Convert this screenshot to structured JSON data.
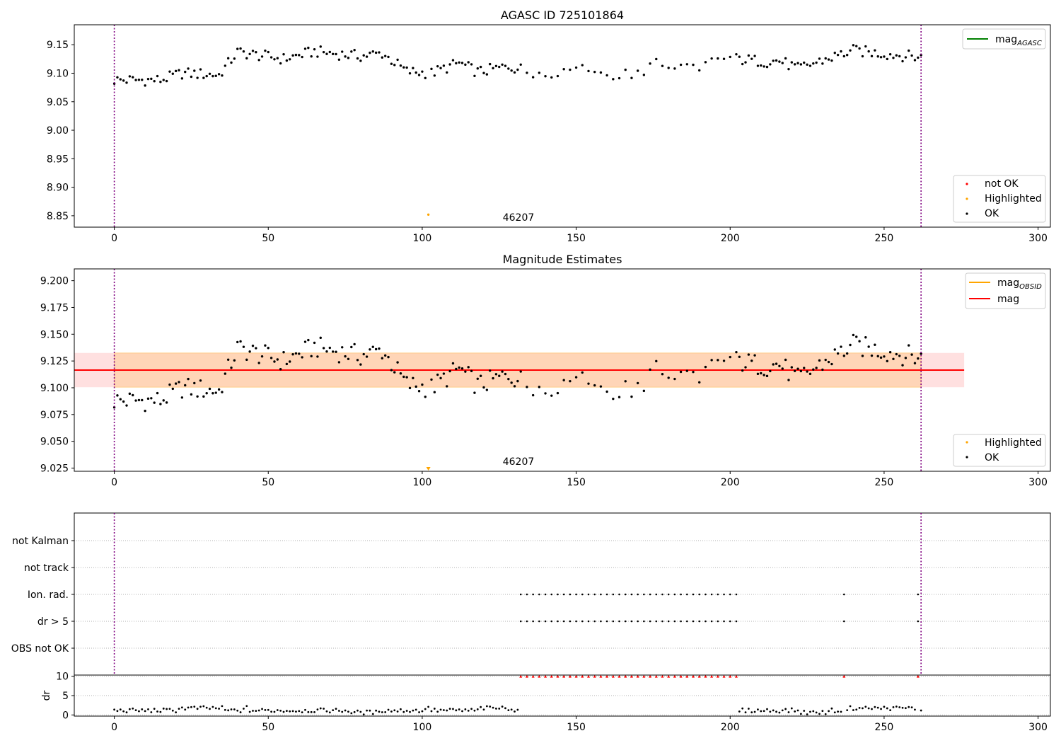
{
  "chart_data": [
    {
      "id": "panel1",
      "type": "scatter",
      "title": "AGASC ID 725101864",
      "xlim": [
        -13,
        304
      ],
      "ylim": [
        8.83,
        9.185
      ],
      "xticks": [
        0,
        50,
        100,
        150,
        200,
        250,
        300
      ],
      "yticks": [
        8.85,
        8.9,
        8.95,
        9.0,
        9.05,
        9.1,
        9.15
      ],
      "ytick_labels": [
        "8.85",
        "8.90",
        "8.95",
        "9.00",
        "9.05",
        "9.10",
        "9.15"
      ],
      "obs_boundaries": [
        0,
        262
      ],
      "annotation": {
        "text": "46207",
        "x": 131,
        "y": 8.838
      },
      "legend_lines": [
        {
          "label": "mag",
          "sub": "AGASC",
          "color": "#008000"
        }
      ],
      "legend_markers": [
        {
          "label": "not OK",
          "color": "#ff0000"
        },
        {
          "label": "Highlighted",
          "color": "#ffa500"
        },
        {
          "label": "OK",
          "color": "#000000"
        }
      ],
      "highlighted": [
        {
          "x": 102,
          "y": 8.852
        }
      ]
    },
    {
      "id": "panel2",
      "type": "scatter",
      "title": "Magnitude Estimates",
      "xlim": [
        -13,
        304
      ],
      "ylim": [
        9.022,
        9.211
      ],
      "xticks": [
        0,
        50,
        100,
        150,
        200,
        250,
        300
      ],
      "yticks": [
        9.025,
        9.05,
        9.075,
        9.1,
        9.125,
        9.15,
        9.175,
        9.2
      ],
      "ytick_labels": [
        "9.025",
        "9.050",
        "9.075",
        "9.100",
        "9.125",
        "9.150",
        "9.175",
        "9.200"
      ],
      "obs_boundaries": [
        0,
        262
      ],
      "annotation": {
        "text": "46207",
        "x": 131,
        "y": 9.027
      },
      "mag_mean": 9.1165,
      "mag_band": [
        9.1005,
        9.1325
      ],
      "band_xrange": [
        -13,
        276
      ],
      "obsid_band_xrange": [
        0,
        262
      ],
      "legend_lines": [
        {
          "label": "mag",
          "sub": "OBSID",
          "color": "#ffa500"
        },
        {
          "label": "mag",
          "sub": "",
          "color": "#ff0000"
        }
      ],
      "legend_markers": [
        {
          "label": "Highlighted",
          "color": "#ffa500"
        },
        {
          "label": "OK",
          "color": "#000000"
        }
      ],
      "highlighted": [
        {
          "x": 102,
          "y": 9.024
        }
      ]
    },
    {
      "id": "panel3",
      "type": "scatter",
      "title": "",
      "xlim": [
        -13,
        304
      ],
      "categories": [
        "not Kalman",
        "not track",
        "Ion. rad.",
        "dr > 5",
        "OBS not OK"
      ],
      "obs_boundaries": [
        0,
        262
      ],
      "flag_intervals": {
        "Ion. rad.": {
          "start": 132,
          "end": 202,
          "step": 2,
          "extra": [
            237,
            261
          ]
        },
        "dr > 5": {
          "start": 132,
          "end": 202,
          "step": 2,
          "extra": [
            237,
            261
          ]
        }
      }
    },
    {
      "id": "panel4",
      "type": "scatter",
      "title": "",
      "ylabel": "dr",
      "xlim": [
        -13,
        304
      ],
      "ylim": [
        -0.3,
        10.3
      ],
      "xticks": [
        0,
        50,
        100,
        150,
        200,
        250,
        300
      ],
      "yticks": [
        0,
        5,
        10
      ],
      "ytick_labels": [
        "0",
        "5",
        "10"
      ],
      "obs_boundaries": [
        0,
        262
      ],
      "capped_value": 10
    }
  ]
}
